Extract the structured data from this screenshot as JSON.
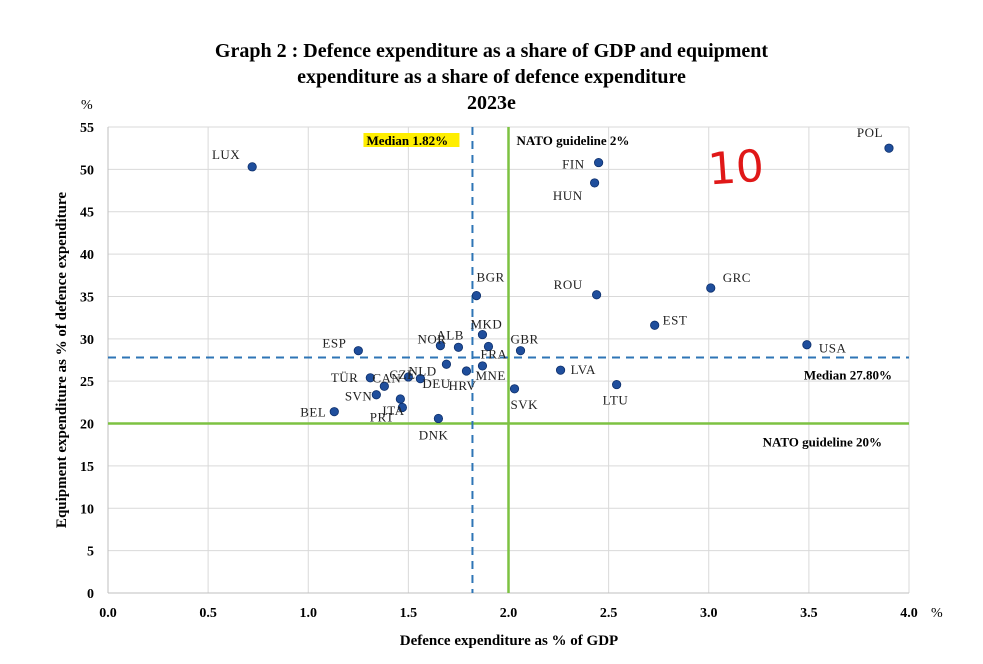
{
  "title_line1": "Graph 2 : Defence expenditure as a share of GDP and equipment",
  "title_line2": "expenditure as a share of defence expenditure",
  "title_line3": "2023e",
  "handwritten_mark": "10",
  "chart_data": {
    "type": "scatter",
    "xlabel": "Defence expenditure as % of GDP",
    "ylabel": "Equipment expenditure as % of defence expenditure",
    "x_unit": "%",
    "y_unit": "%",
    "xlim": [
      0,
      4
    ],
    "ylim": [
      0,
      55
    ],
    "x_ticks": [
      "0.0",
      "0.5",
      "1.0",
      "1.5",
      "2.0",
      "2.5",
      "3.0",
      "3.5",
      "4.0"
    ],
    "y_ticks": [
      "0",
      "5",
      "10",
      "15",
      "20",
      "25",
      "30",
      "35",
      "40",
      "45",
      "50",
      "55"
    ],
    "grid": true,
    "reference_lines": {
      "median_x": {
        "value": 1.82,
        "label": "Median 1.82%",
        "style": "dashed",
        "color": "#2e75b6"
      },
      "median_y": {
        "value": 27.8,
        "label": "Median 27.80%",
        "style": "dashed",
        "color": "#2e75b6"
      },
      "nato_x": {
        "value": 2.0,
        "label": "NATO guideline 2%",
        "color": "#7dc242"
      },
      "nato_y": {
        "value": 20,
        "label": "NATO guideline 20%",
        "color": "#7dc242"
      }
    },
    "point_color": "#1f4e9c",
    "points": [
      {
        "label": "LUX",
        "x": 0.72,
        "y": 50.3
      },
      {
        "label": "POL",
        "x": 3.9,
        "y": 52.5
      },
      {
        "label": "FIN",
        "x": 2.45,
        "y": 50.8
      },
      {
        "label": "HUN",
        "x": 2.43,
        "y": 48.4
      },
      {
        "label": "GRC",
        "x": 3.01,
        "y": 36.0
      },
      {
        "label": "ROU",
        "x": 2.44,
        "y": 35.2
      },
      {
        "label": "BGR",
        "x": 1.84,
        "y": 35.1
      },
      {
        "label": "EST",
        "x": 2.73,
        "y": 31.6
      },
      {
        "label": "MKD",
        "x": 1.87,
        "y": 30.5
      },
      {
        "label": "USA",
        "x": 3.49,
        "y": 29.3
      },
      {
        "label": "ALB",
        "x": 1.66,
        "y": 29.2
      },
      {
        "label": "NOR",
        "x": 1.75,
        "y": 29.0
      },
      {
        "label": "GBR",
        "x": 2.06,
        "y": 28.6
      },
      {
        "label": "ESP",
        "x": 1.25,
        "y": 28.6
      },
      {
        "label": "FRA",
        "x": 1.9,
        "y": 29.1
      },
      {
        "label": "LVA",
        "x": 2.26,
        "y": 26.3
      },
      {
        "label": "MNE",
        "x": 1.87,
        "y": 26.8
      },
      {
        "label": "HRV",
        "x": 1.79,
        "y": 26.2
      },
      {
        "label": "TÜR",
        "x": 1.31,
        "y": 25.4
      },
      {
        "label": "CAN",
        "x": 1.38,
        "y": 24.4
      },
      {
        "label": "NLD",
        "x": 1.56,
        "y": 25.3
      },
      {
        "label": "CZE",
        "x": 1.5,
        "y": 25.5
      },
      {
        "label": "LTU",
        "x": 2.54,
        "y": 24.6
      },
      {
        "label": "SVK",
        "x": 2.03,
        "y": 24.1
      },
      {
        "label": "DEU",
        "x": 1.69,
        "y": 27.0
      },
      {
        "label": "SVN",
        "x": 1.34,
        "y": 23.4
      },
      {
        "label": "ITA",
        "x": 1.46,
        "y": 22.9
      },
      {
        "label": "PRT",
        "x": 1.47,
        "y": 21.9
      },
      {
        "label": "BEL",
        "x": 1.13,
        "y": 21.4
      },
      {
        "label": "DNK",
        "x": 1.65,
        "y": 20.6
      }
    ]
  }
}
